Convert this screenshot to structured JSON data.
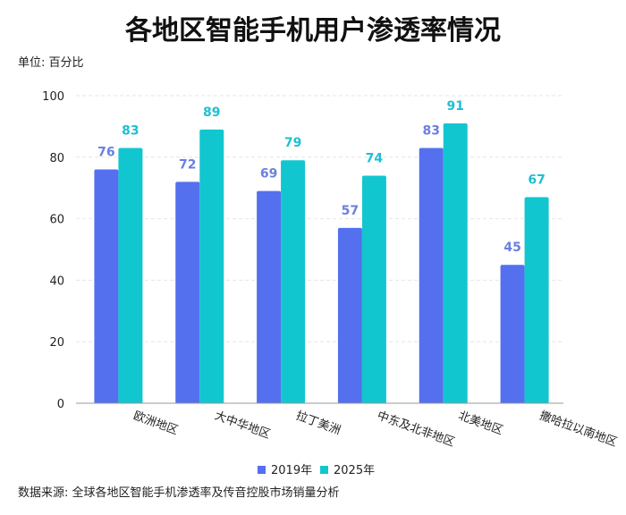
{
  "chart_data": {
    "type": "bar",
    "title": "各地区智能手机用户渗透率情况",
    "unit_label": "单位: 百分比",
    "categories": [
      "欧洲地区",
      "大中华地区",
      "拉丁美洲",
      "中东及北非地区",
      "北美地区",
      "撒哈拉以南地区"
    ],
    "series": [
      {
        "name": "2019年",
        "values": [
          76,
          72,
          69,
          57,
          83,
          45
        ],
        "color": "#5470ee",
        "label_color": "#6a7fe0"
      },
      {
        "name": "2025年",
        "values": [
          83,
          89,
          79,
          74,
          91,
          67
        ],
        "color": "#12c6cf",
        "label_color": "#1fbfd0"
      }
    ],
    "ylim": [
      0,
      100
    ],
    "yticks": [
      "0",
      "20",
      "40",
      "60",
      "80",
      "100"
    ],
    "grid": true,
    "legend_position": "bottom",
    "source": "数据来源: 全球各地区智能手机渗透率及传音控股市场销量分析"
  }
}
